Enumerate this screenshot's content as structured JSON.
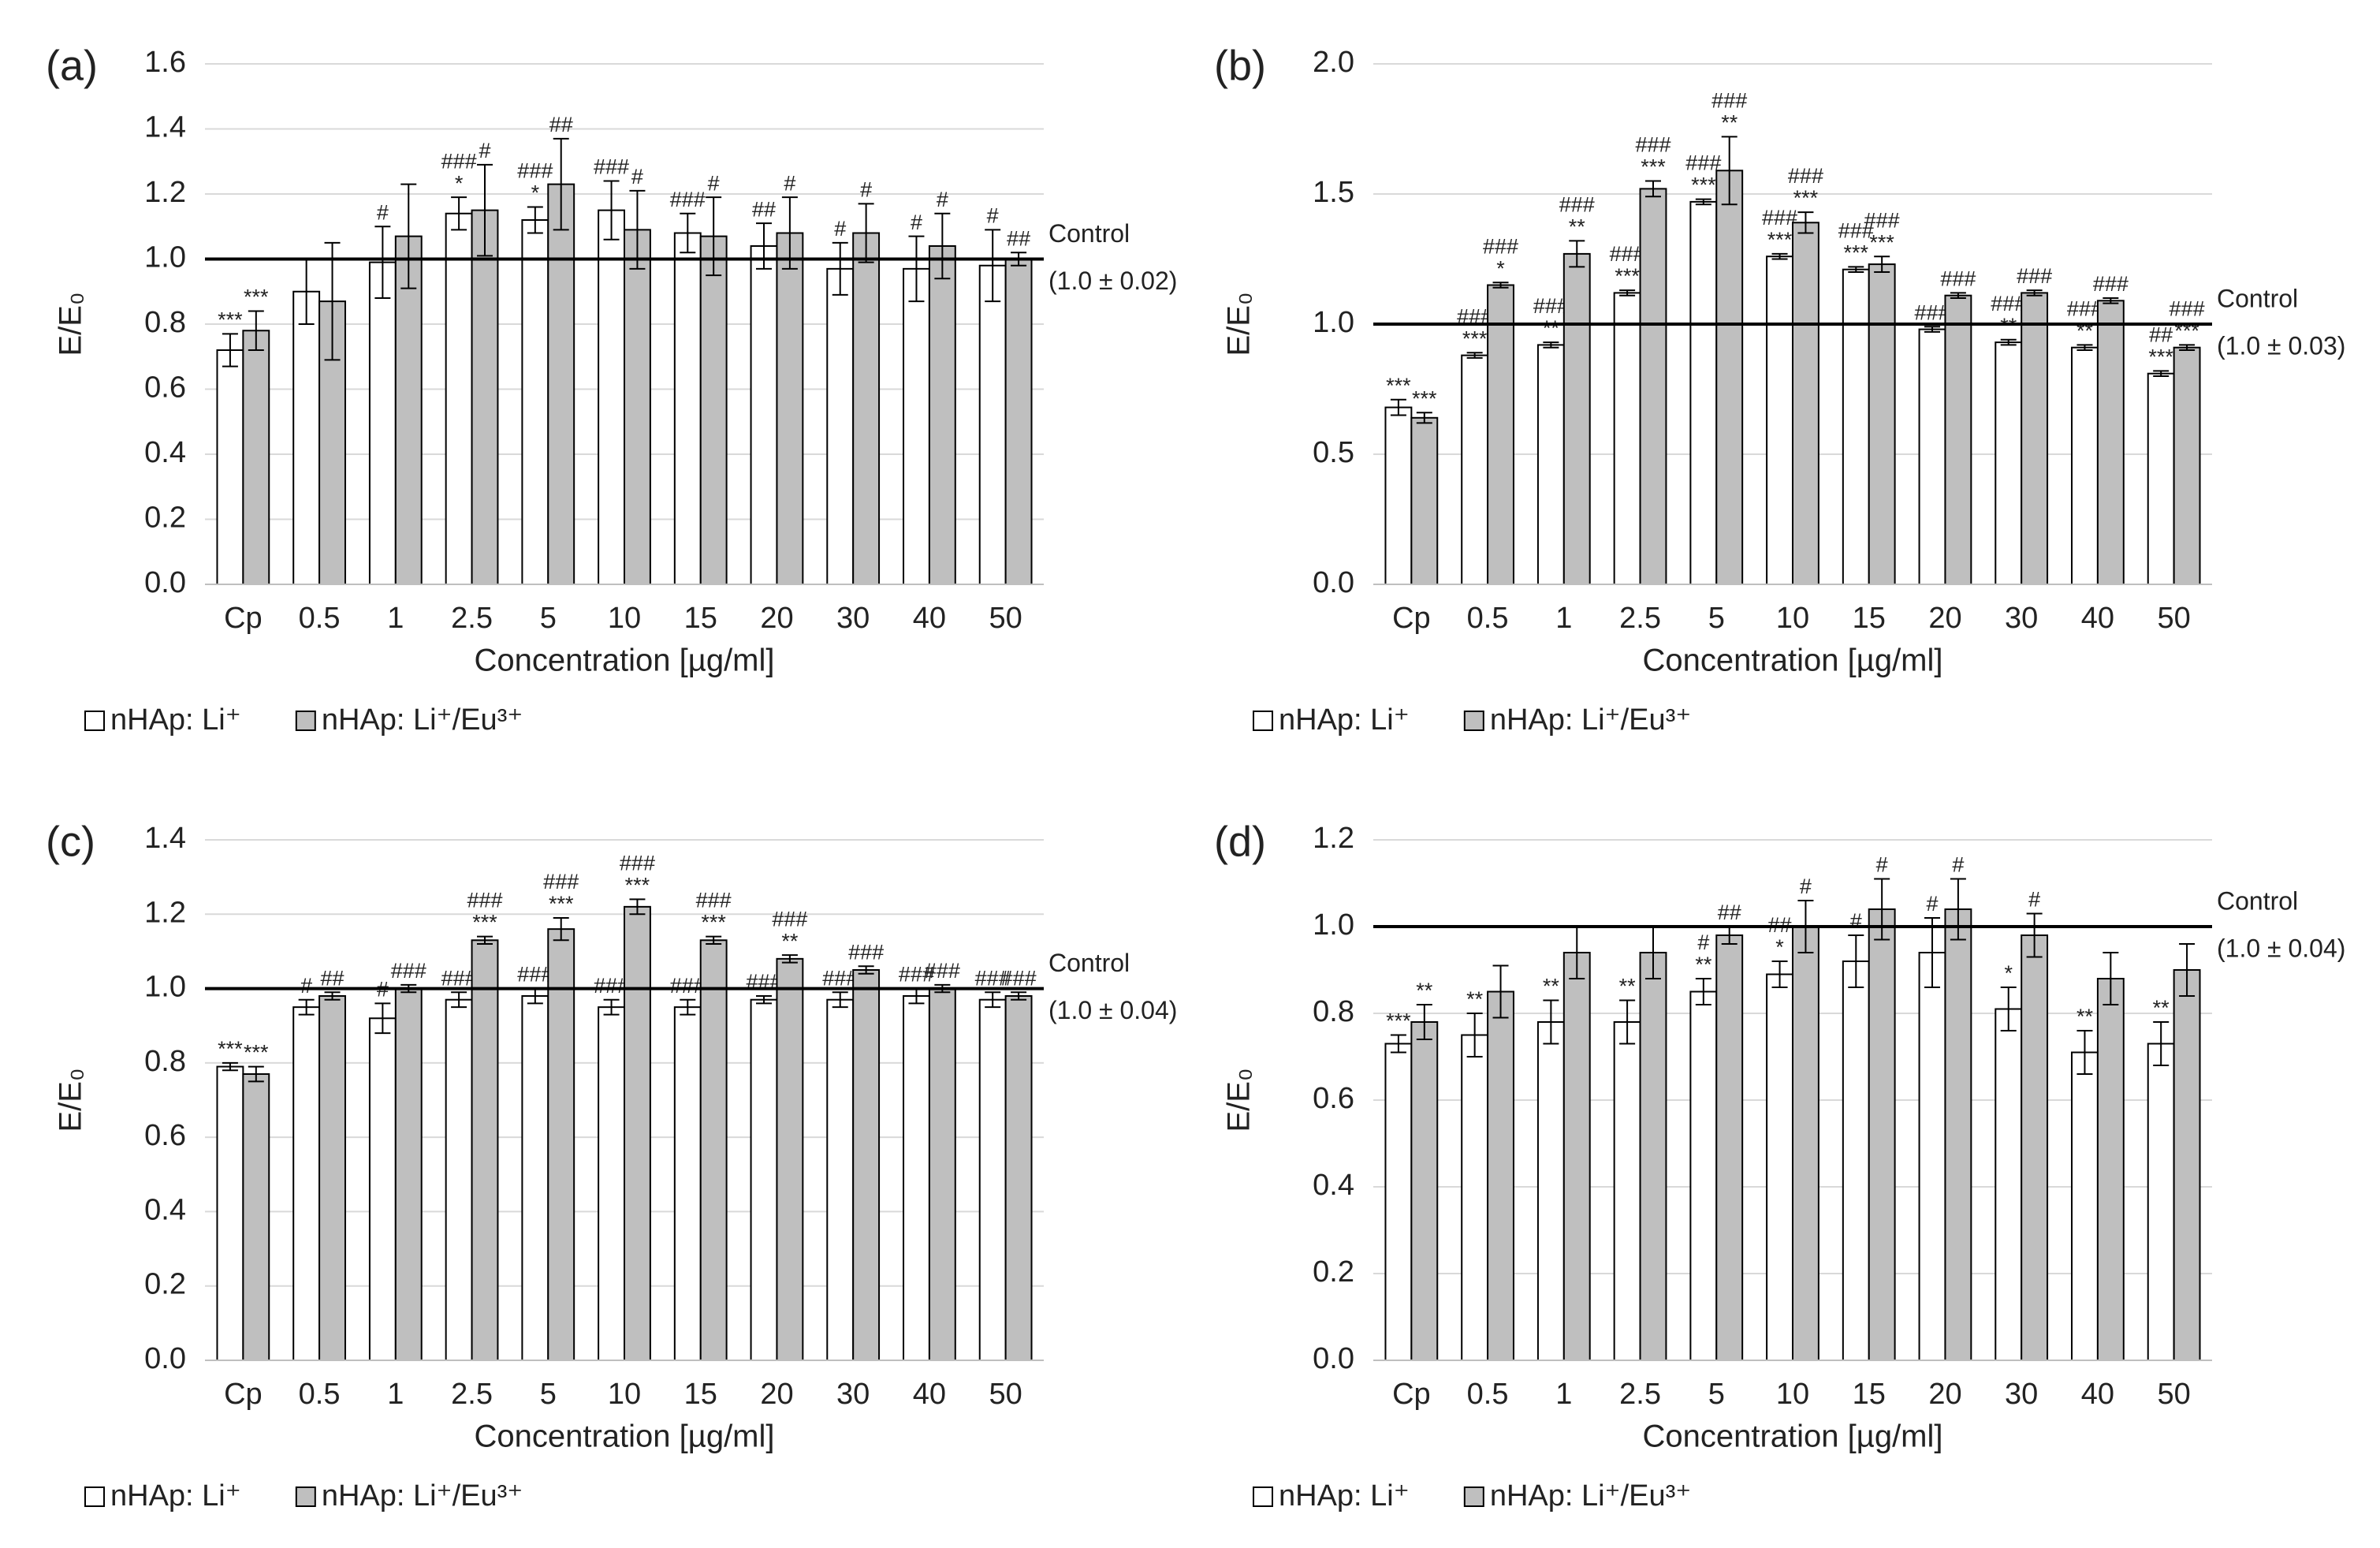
{
  "chart_data": [
    {
      "type": "bar",
      "panel": "(a)",
      "xlabel": "Concentration [µg/ml]",
      "ylabel": "E/E₀",
      "categories": [
        "Cp",
        "0.5",
        "1",
        "2.5",
        "5",
        "10",
        "15",
        "20",
        "30",
        "40",
        "50"
      ],
      "ylim": [
        0,
        1.6
      ],
      "yticks": [
        {
          "value": 0,
          "label": "0.0"
        },
        0.2,
        0.4,
        0.6,
        0.8,
        {
          "value": 1,
          "label": "1.0"
        },
        1.2,
        1.4,
        1.6
      ],
      "grid": true,
      "control": {
        "value": 1,
        "label": "Control",
        "note": "(1.0 ± 0.02)"
      },
      "series": [
        {
          "name": "nHAp: Li⁺",
          "color": "#ffffff",
          "values": [
            0.72,
            0.9,
            0.99,
            1.14,
            1.12,
            1.15,
            1.08,
            1.04,
            0.97,
            0.97,
            0.98
          ],
          "errors": [
            0.05,
            0.1,
            0.11,
            0.05,
            0.04,
            0.09,
            0.06,
            0.07,
            0.08,
            0.1,
            0.11
          ],
          "annotations": [
            [
              "***"
            ],
            [],
            [
              "#"
            ],
            [
              "###",
              "*"
            ],
            [
              "###",
              "*"
            ],
            [
              "###"
            ],
            [
              "###"
            ],
            [
              "##"
            ],
            [
              "#"
            ],
            [
              "#"
            ],
            [
              "#"
            ]
          ]
        },
        {
          "name": "nHAp: Li⁺/Eu³⁺",
          "color": "#bfbfbf",
          "values": [
            0.78,
            0.87,
            1.07,
            1.15,
            1.23,
            1.09,
            1.07,
            1.08,
            1.08,
            1.04,
            1.0
          ],
          "errors": [
            0.06,
            0.18,
            0.16,
            0.14,
            0.14,
            0.12,
            0.12,
            0.11,
            0.09,
            0.1,
            0.02
          ],
          "annotations": [
            [
              "***"
            ],
            [],
            [],
            [
              "#"
            ],
            [
              "##"
            ],
            [
              "#"
            ],
            [
              "#"
            ],
            [
              "#"
            ],
            [
              "#"
            ],
            [
              "#"
            ],
            [
              "##"
            ]
          ]
        }
      ]
    },
    {
      "type": "bar",
      "panel": "(b)",
      "xlabel": "Concentration [µg/ml]",
      "ylabel": "E/E₀",
      "categories": [
        "Cp",
        "0.5",
        "1",
        "2.5",
        "5",
        "10",
        "15",
        "20",
        "30",
        "40",
        "50"
      ],
      "ylim": [
        0,
        2
      ],
      "yticks": [
        {
          "value": 0,
          "label": "0.0"
        },
        0.5,
        {
          "value": 1,
          "label": "1.0"
        },
        1.5,
        {
          "value": 2,
          "label": "2.0"
        }
      ],
      "grid": true,
      "control": {
        "value": 1,
        "label": "Control",
        "note": "(1.0 ± 0.03)"
      },
      "series": [
        {
          "name": "nHAp: Li⁺",
          "color": "#ffffff",
          "values": [
            0.68,
            0.88,
            0.92,
            1.12,
            1.47,
            1.26,
            1.21,
            0.98,
            0.93,
            0.91,
            0.81
          ],
          "errors": [
            0.03,
            0.01,
            0.01,
            0.01,
            0.01,
            0.01,
            0.01,
            0.01,
            0.01,
            0.01,
            0.01
          ],
          "annotations": [
            [
              "***"
            ],
            [
              "###",
              "***"
            ],
            [
              "###",
              "**"
            ],
            [
              "###",
              "***"
            ],
            [
              "###",
              "***"
            ],
            [
              "###",
              "***"
            ],
            [
              "###",
              "***"
            ],
            [
              "###"
            ],
            [
              "###",
              "**"
            ],
            [
              "###",
              "**"
            ],
            [
              "##",
              "***"
            ]
          ]
        },
        {
          "name": "nHAp: Li⁺/Eu³⁺",
          "color": "#bfbfbf",
          "values": [
            0.64,
            1.15,
            1.27,
            1.52,
            1.59,
            1.39,
            1.23,
            1.11,
            1.12,
            1.09,
            0.91
          ],
          "errors": [
            0.02,
            0.01,
            0.05,
            0.03,
            0.13,
            0.04,
            0.03,
            0.01,
            0.01,
            0.01,
            0.01
          ],
          "annotations": [
            [
              "***"
            ],
            [
              "###",
              "*"
            ],
            [
              "###",
              "**"
            ],
            [
              "###",
              "***"
            ],
            [
              "###",
              "**"
            ],
            [
              "###",
              "***"
            ],
            [
              "###",
              "***"
            ],
            [
              "###"
            ],
            [
              "###"
            ],
            [
              "###"
            ],
            [
              "###",
              "***"
            ]
          ]
        }
      ]
    },
    {
      "type": "bar",
      "panel": "(c)",
      "xlabel": "Concentration [µg/ml]",
      "ylabel": "E/E₀",
      "categories": [
        "Cp",
        "0.5",
        "1",
        "2.5",
        "5",
        "10",
        "15",
        "20",
        "30",
        "40",
        "50"
      ],
      "ylim": [
        0,
        1.4
      ],
      "yticks": [
        {
          "value": 0,
          "label": "0.0"
        },
        0.2,
        0.4,
        0.6,
        0.8,
        {
          "value": 1,
          "label": "1.0"
        },
        1.2,
        1.4
      ],
      "grid": true,
      "control": {
        "value": 1,
        "label": "Control",
        "note": "(1.0 ± 0.04)"
      },
      "series": [
        {
          "name": "nHAp: Li⁺",
          "color": "#ffffff",
          "values": [
            0.79,
            0.95,
            0.92,
            0.97,
            0.98,
            0.95,
            0.95,
            0.97,
            0.97,
            0.98,
            0.97
          ],
          "errors": [
            0.01,
            0.02,
            0.04,
            0.02,
            0.02,
            0.02,
            0.02,
            0.01,
            0.02,
            0.02,
            0.02
          ],
          "annotations": [
            [
              "***"
            ],
            [
              "#"
            ],
            [
              "#"
            ],
            [
              "###"
            ],
            [
              "###"
            ],
            [
              "###"
            ],
            [
              "###"
            ],
            [
              "###"
            ],
            [
              "###"
            ],
            [
              "###"
            ],
            [
              "###"
            ]
          ]
        },
        {
          "name": "nHAp: Li⁺/Eu³⁺",
          "color": "#bfbfbf",
          "values": [
            0.77,
            0.98,
            1.0,
            1.13,
            1.16,
            1.22,
            1.13,
            1.08,
            1.05,
            1.0,
            0.98
          ],
          "errors": [
            0.02,
            0.01,
            0.01,
            0.01,
            0.03,
            0.02,
            0.01,
            0.01,
            0.01,
            0.01,
            0.01
          ],
          "annotations": [
            [
              "***"
            ],
            [
              "##"
            ],
            [
              "###"
            ],
            [
              "###",
              "***"
            ],
            [
              "###",
              "***"
            ],
            [
              "###",
              "***"
            ],
            [
              "###",
              "***"
            ],
            [
              "###",
              "**"
            ],
            [
              "###"
            ],
            [
              "###"
            ],
            [
              "###"
            ]
          ]
        }
      ]
    },
    {
      "type": "bar",
      "panel": "(d)",
      "xlabel": "Concentration [µg/ml]",
      "ylabel": "E/E₀",
      "categories": [
        "Cp",
        "0.5",
        "1",
        "2.5",
        "5",
        "10",
        "15",
        "20",
        "30",
        "40",
        "50"
      ],
      "ylim": [
        0,
        1.2
      ],
      "yticks": [
        {
          "value": 0,
          "label": "0.0"
        },
        0.2,
        0.4,
        0.6,
        0.8,
        {
          "value": 1,
          "label": "1.0"
        },
        1.2
      ],
      "grid": true,
      "control": {
        "value": 1,
        "label": "Control",
        "note": "(1.0 ± 0.04)"
      },
      "series": [
        {
          "name": "nHAp: Li⁺",
          "color": "#ffffff",
          "values": [
            0.73,
            0.75,
            0.78,
            0.78,
            0.85,
            0.89,
            0.92,
            0.94,
            0.81,
            0.71,
            0.73
          ],
          "errors": [
            0.02,
            0.05,
            0.05,
            0.05,
            0.03,
            0.03,
            0.06,
            0.08,
            0.05,
            0.05,
            0.05
          ],
          "annotations": [
            [
              "***"
            ],
            [
              "**"
            ],
            [
              "**"
            ],
            [
              "**"
            ],
            [
              "#",
              "**"
            ],
            [
              "##",
              "*"
            ],
            [
              "#"
            ],
            [
              "#"
            ],
            [
              "*"
            ],
            [
              "**"
            ],
            [
              "**"
            ]
          ]
        },
        {
          "name": "nHAp: Li⁺/Eu³⁺",
          "color": "#bfbfbf",
          "values": [
            0.78,
            0.85,
            0.94,
            0.94,
            0.98,
            1.0,
            1.04,
            1.04,
            0.98,
            0.88,
            0.9
          ],
          "errors": [
            0.04,
            0.06,
            0.06,
            0.06,
            0.02,
            0.06,
            0.07,
            0.07,
            0.05,
            0.06,
            0.06
          ],
          "annotations": [
            [
              "**"
            ],
            [],
            [],
            [],
            [
              "##"
            ],
            [
              "#"
            ],
            [
              "#"
            ],
            [
              "#"
            ],
            [
              "#"
            ],
            [],
            []
          ]
        }
      ]
    }
  ]
}
